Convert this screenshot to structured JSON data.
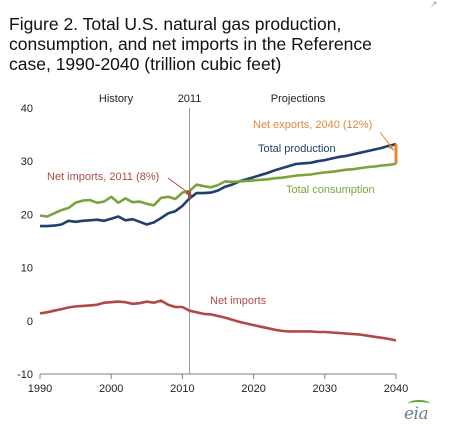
{
  "title_lines": [
    "Figure 2. Total U.S. natural gas production,",
    "consumption, and net imports in the Reference",
    "case, 1990-2040 (trillion cubic feet)"
  ],
  "corner_mark": "↗",
  "logo_text": "eia",
  "chart_data": {
    "type": "line",
    "title": "Figure 2. Total U.S. natural gas production, consumption, and net imports in the Reference case, 1990-2040 (trillion cubic feet)",
    "xlabel": "",
    "ylabel": "",
    "xlim": [
      1990,
      2040
    ],
    "ylim": [
      -10,
      40
    ],
    "x_ticks": [
      1990,
      2000,
      2010,
      2020,
      2030,
      2040
    ],
    "y_ticks": [
      -10,
      0,
      10,
      20,
      30,
      40
    ],
    "grid": false,
    "legend": "none",
    "divider": {
      "x": 2011,
      "label": "2011",
      "left_label": "History",
      "right_label": "Projections"
    },
    "series": [
      {
        "name": "Total production",
        "color": "#1f3f6e",
        "x": [
          1990,
          1991,
          1992,
          1993,
          1994,
          1995,
          1996,
          1997,
          1998,
          1999,
          2000,
          2001,
          2002,
          2003,
          2004,
          2005,
          2006,
          2007,
          2008,
          2009,
          2010,
          2011,
          2012,
          2013,
          2014,
          2015,
          2016,
          2017,
          2018,
          2019,
          2020,
          2021,
          2022,
          2023,
          2024,
          2025,
          2026,
          2027,
          2028,
          2029,
          2030,
          2031,
          2032,
          2033,
          2034,
          2035,
          2036,
          2037,
          2038,
          2039,
          2040
        ],
        "values": [
          17.8,
          17.8,
          17.9,
          18.1,
          18.8,
          18.6,
          18.8,
          18.9,
          19.0,
          18.8,
          19.2,
          19.6,
          18.9,
          19.1,
          18.6,
          18.1,
          18.5,
          19.3,
          20.2,
          20.6,
          21.6,
          23.0,
          24.0,
          24.0,
          24.1,
          24.5,
          25.2,
          25.6,
          26.2,
          26.6,
          27.0,
          27.4,
          27.8,
          28.3,
          28.7,
          29.1,
          29.5,
          29.6,
          29.7,
          30.0,
          30.2,
          30.5,
          30.8,
          31.0,
          31.3,
          31.6,
          31.9,
          32.2,
          32.5,
          32.9,
          33.2
        ]
      },
      {
        "name": "Total consumption",
        "color": "#7ba23f",
        "x": [
          1990,
          1991,
          1992,
          1993,
          1994,
          1995,
          1996,
          1997,
          1998,
          1999,
          2000,
          2001,
          2002,
          2003,
          2004,
          2005,
          2006,
          2007,
          2008,
          2009,
          2010,
          2011,
          2012,
          2013,
          2014,
          2015,
          2016,
          2017,
          2018,
          2019,
          2020,
          2021,
          2022,
          2023,
          2024,
          2025,
          2026,
          2027,
          2028,
          2029,
          2030,
          2031,
          2032,
          2033,
          2034,
          2035,
          2036,
          2037,
          2038,
          2039,
          2040
        ],
        "values": [
          19.8,
          19.6,
          20.2,
          20.8,
          21.2,
          22.2,
          22.6,
          22.7,
          22.2,
          22.4,
          23.3,
          22.2,
          23.0,
          22.3,
          22.4,
          22.0,
          21.7,
          23.1,
          23.3,
          22.9,
          24.1,
          24.4,
          25.6,
          25.3,
          25.1,
          25.5,
          26.2,
          26.1,
          26.2,
          26.3,
          26.4,
          26.5,
          26.6,
          26.8,
          26.9,
          27.1,
          27.3,
          27.4,
          27.5,
          27.7,
          27.9,
          28.0,
          28.2,
          28.4,
          28.5,
          28.7,
          28.9,
          29.0,
          29.2,
          29.3,
          29.5
        ]
      },
      {
        "name": "Net imports",
        "color": "#b04a47",
        "x": [
          1990,
          1991,
          1992,
          1993,
          1994,
          1995,
          1996,
          1997,
          1998,
          1999,
          2000,
          2001,
          2002,
          2003,
          2004,
          2005,
          2006,
          2007,
          2008,
          2009,
          2010,
          2011,
          2012,
          2013,
          2014,
          2015,
          2016,
          2017,
          2018,
          2019,
          2020,
          2021,
          2022,
          2023,
          2024,
          2025,
          2026,
          2027,
          2028,
          2029,
          2030,
          2031,
          2032,
          2033,
          2034,
          2035,
          2036,
          2037,
          2038,
          2039,
          2040
        ],
        "values": [
          1.4,
          1.6,
          1.9,
          2.2,
          2.5,
          2.7,
          2.8,
          2.9,
          3.0,
          3.4,
          3.5,
          3.6,
          3.5,
          3.2,
          3.3,
          3.6,
          3.4,
          3.8,
          3.0,
          2.6,
          2.6,
          1.9,
          1.6,
          1.3,
          1.2,
          0.9,
          0.6,
          0.2,
          -0.2,
          -0.5,
          -0.8,
          -1.1,
          -1.4,
          -1.7,
          -1.9,
          -2.0,
          -2.0,
          -2.0,
          -2.0,
          -2.1,
          -2.1,
          -2.2,
          -2.3,
          -2.4,
          -2.5,
          -2.6,
          -2.8,
          -3.0,
          -3.2,
          -3.4,
          -3.7
        ]
      }
    ],
    "series_labels": [
      {
        "text": "Total production",
        "color": "#1f3f6e"
      },
      {
        "text": "Total consumption",
        "color": "#7ba23f"
      },
      {
        "text": "Net imports",
        "color": "#b04a47"
      }
    ],
    "annotations": [
      {
        "text": "Net imports, 2011 (8%)",
        "color": "#b04a47",
        "target_x": 2011,
        "target_y_from": 23.0,
        "target_y_to": 24.4,
        "color_bar": "#b04a47"
      },
      {
        "text": "Net exports, 2040 (12%)",
        "color": "#e0883a",
        "target_x": 2040,
        "target_y_from": 29.5,
        "target_y_to": 33.2,
        "color_bar": "#e0883a"
      }
    ]
  }
}
